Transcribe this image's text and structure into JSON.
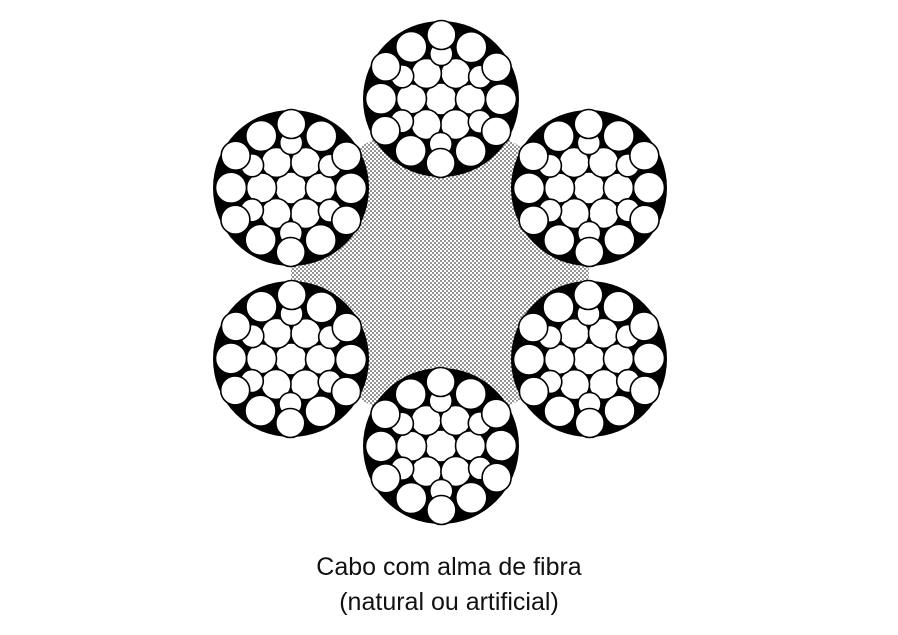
{
  "caption": {
    "line1": "Cabo com alma de fibra",
    "line2": "(natural ou artificial)"
  },
  "diagram": {
    "subject": "wire rope cross-section",
    "strand_count": 6,
    "core_type": "fiber",
    "colors": {
      "wire_fill": "#ffffff",
      "wire_stroke": "#000000",
      "strand_fill": "#000000",
      "core_dot": "#6a6a6a",
      "core_background": "#ffffff"
    }
  }
}
